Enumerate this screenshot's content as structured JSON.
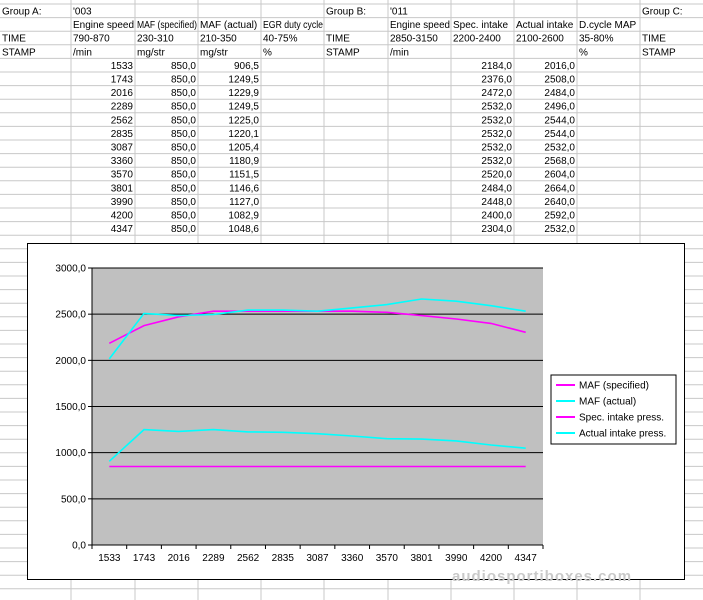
{
  "sheet": {
    "header_rows": [
      [
        "Group A:",
        "'003",
        "",
        "",
        "",
        "Group B:",
        "'011",
        "",
        "",
        "",
        "Group C:"
      ],
      [
        "",
        "Engine speed",
        "MAF (specified)",
        "MAF (actual)",
        "EGR duty cycle",
        "",
        "Engine speed",
        "Spec. intake",
        "Actual intake",
        "D.cycle MAP",
        ""
      ],
      [
        "TIME",
        "790-870",
        "230-310",
        "210-350",
        "40-75%",
        "TIME",
        "2850-3150",
        "2200-2400",
        "2100-2600",
        "35-80%",
        "TIME"
      ],
      [
        "STAMP",
        "/min",
        "mg/str",
        "mg/str",
        "%",
        "STAMP",
        "/min",
        "",
        "",
        "%",
        "STAMP"
      ]
    ],
    "data_rows": [
      [
        "1533",
        "850,0",
        "906,5",
        "2184,0",
        "2016,0"
      ],
      [
        "1743",
        "850,0",
        "1249,5",
        "2376,0",
        "2508,0"
      ],
      [
        "2016",
        "850,0",
        "1229,9",
        "2472,0",
        "2484,0"
      ],
      [
        "2289",
        "850,0",
        "1249,5",
        "2532,0",
        "2496,0"
      ],
      [
        "2562",
        "850,0",
        "1225,0",
        "2532,0",
        "2544,0"
      ],
      [
        "2835",
        "850,0",
        "1220,1",
        "2532,0",
        "2544,0"
      ],
      [
        "3087",
        "850,0",
        "1205,4",
        "2532,0",
        "2532,0"
      ],
      [
        "3360",
        "850,0",
        "1180,9",
        "2532,0",
        "2568,0"
      ],
      [
        "3570",
        "850,0",
        "1151,5",
        "2520,0",
        "2604,0"
      ],
      [
        "3801",
        "850,0",
        "1146,6",
        "2484,0",
        "2664,0"
      ],
      [
        "3990",
        "850,0",
        "1127,0",
        "2448,0",
        "2640,0"
      ],
      [
        "4200",
        "850,0",
        "1082,9",
        "2400,0",
        "2592,0"
      ],
      [
        "4347",
        "850,0",
        "1048,6",
        "2304,0",
        "2532,0"
      ]
    ]
  },
  "chart_data": {
    "type": "line",
    "categories": [
      "1533",
      "1743",
      "2016",
      "2289",
      "2562",
      "2835",
      "3087",
      "3360",
      "3570",
      "3801",
      "3990",
      "4200",
      "4347"
    ],
    "ylim": [
      0,
      3000
    ],
    "yticks": [
      "0,0",
      "500,0",
      "1000,0",
      "1500,0",
      "2000,0",
      "2500,0",
      "3000,0"
    ],
    "grid": true,
    "legend_position": "right",
    "plot_background": "#c0c0c0",
    "series": [
      {
        "name": "MAF (specified)",
        "color": "#ff00ff",
        "values": [
          850,
          850,
          850,
          850,
          850,
          850,
          850,
          850,
          850,
          850,
          850,
          850,
          850
        ]
      },
      {
        "name": "MAF (actual)",
        "color": "#00ffff",
        "values": [
          906.5,
          1249.5,
          1229.9,
          1249.5,
          1225.0,
          1220.1,
          1205.4,
          1180.9,
          1151.5,
          1146.6,
          1127.0,
          1082.9,
          1048.6
        ]
      },
      {
        "name": "Spec. intake press.",
        "color": "#ff00ff",
        "values": [
          2184,
          2376,
          2472,
          2532,
          2532,
          2532,
          2532,
          2532,
          2520,
          2484,
          2448,
          2400,
          2304
        ]
      },
      {
        "name": "Actual intake press.",
        "color": "#00ffff",
        "values": [
          2016,
          2508,
          2484,
          2496,
          2544,
          2544,
          2532,
          2568,
          2604,
          2664,
          2640,
          2592,
          2532
        ]
      }
    ]
  },
  "watermark": "audiosportiboxes.com"
}
